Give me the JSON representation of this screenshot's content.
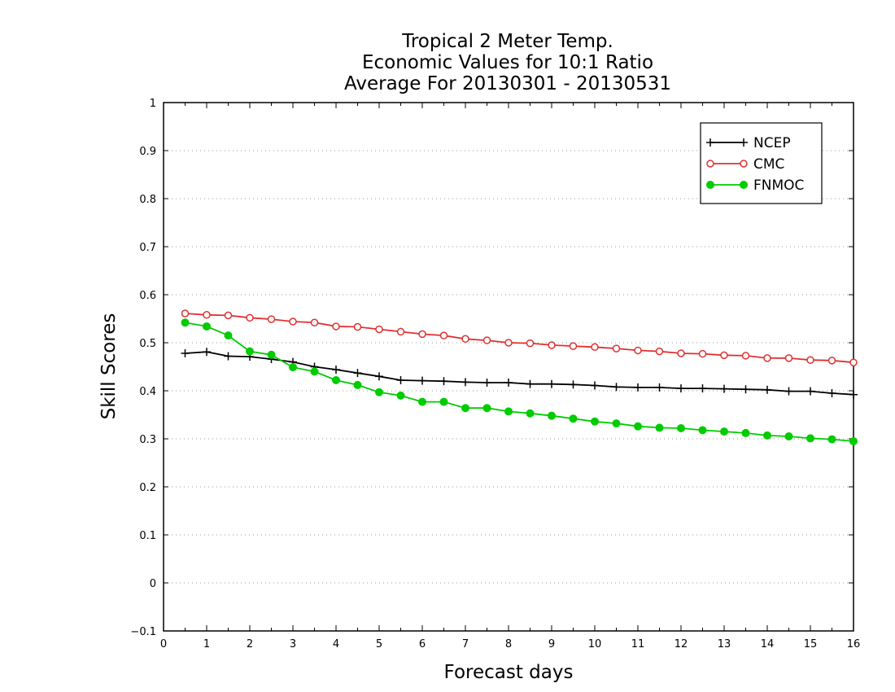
{
  "chart_data": {
    "type": "line",
    "title_lines": [
      "Tropical 2 Meter Temp.",
      "Economic Values for 10:1 Ratio",
      "Average For 20130301 - 20130531"
    ],
    "xlabel": "Forecast days",
    "ylabel": "Skill Scores",
    "xlim": [
      0,
      16
    ],
    "ylim": [
      -0.1,
      1
    ],
    "x_ticks": [
      "0",
      "1",
      "2",
      "3",
      "4",
      "5",
      "6",
      "7",
      "8",
      "9",
      "10",
      "11",
      "12",
      "13",
      "14",
      "15",
      "16"
    ],
    "y_ticks": [
      "−0.1",
      "0",
      "0.1",
      "0.2",
      "0.3",
      "0.4",
      "0.5",
      "0.6",
      "0.7",
      "0.8",
      "0.9",
      "1"
    ],
    "grid": "horizontal dotted",
    "legend_position": "top-right",
    "x": [
      0.5,
      1,
      1.5,
      2,
      2.5,
      3,
      3.5,
      4,
      4.5,
      5,
      5.5,
      6,
      6.5,
      7,
      7.5,
      8,
      8.5,
      9,
      9.5,
      10,
      10.5,
      11,
      11.5,
      12,
      12.5,
      13,
      13.5,
      14,
      14.5,
      15,
      15.5,
      16
    ],
    "series": [
      {
        "name": "NCEP",
        "color": "#000000",
        "marker": "plus",
        "values": [
          0.478,
          0.481,
          0.472,
          0.471,
          0.466,
          0.46,
          0.45,
          0.444,
          0.437,
          0.43,
          0.422,
          0.421,
          0.42,
          0.418,
          0.417,
          0.417,
          0.414,
          0.414,
          0.413,
          0.411,
          0.408,
          0.407,
          0.407,
          0.405,
          0.405,
          0.404,
          0.403,
          0.402,
          0.399,
          0.399,
          0.395,
          0.392
        ]
      },
      {
        "name": "CMC",
        "color": "#e03030",
        "marker": "open-circle",
        "values": [
          0.561,
          0.558,
          0.557,
          0.552,
          0.549,
          0.544,
          0.542,
          0.534,
          0.533,
          0.528,
          0.523,
          0.518,
          0.515,
          0.508,
          0.505,
          0.5,
          0.499,
          0.495,
          0.493,
          0.491,
          0.488,
          0.484,
          0.482,
          0.478,
          0.477,
          0.474,
          0.473,
          0.468,
          0.468,
          0.464,
          0.463,
          0.459
        ]
      },
      {
        "name": "FNMOC",
        "color": "#00cc00",
        "marker": "filled-circle",
        "values": [
          0.542,
          0.534,
          0.515,
          0.482,
          0.475,
          0.449,
          0.44,
          0.422,
          0.412,
          0.397,
          0.39,
          0.377,
          0.377,
          0.364,
          0.364,
          0.357,
          0.353,
          0.348,
          0.342,
          0.336,
          0.332,
          0.326,
          0.323,
          0.322,
          0.318,
          0.315,
          0.312,
          0.307,
          0.305,
          0.301,
          0.299,
          0.295
        ]
      }
    ]
  }
}
